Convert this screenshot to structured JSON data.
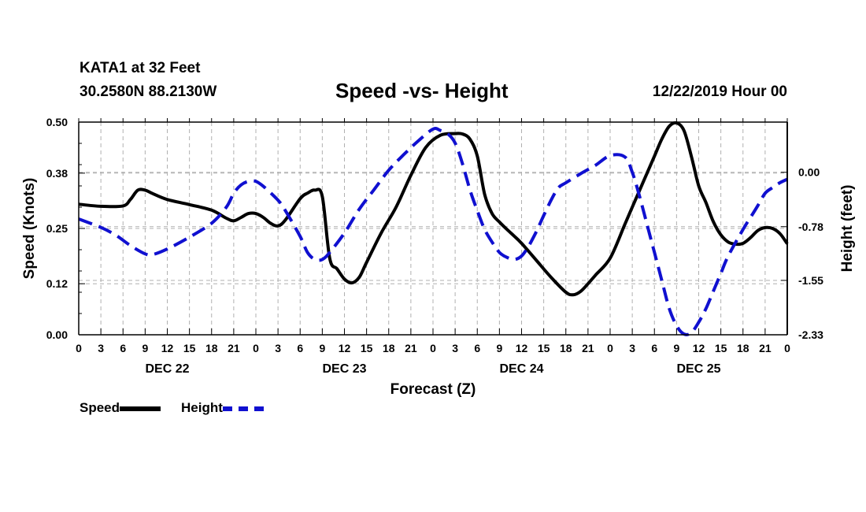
{
  "header": {
    "station": "KATA1 at 32 Feet",
    "coords": "30.2580N 88.2130W",
    "title": "Speed -vs- Height",
    "datetime": "12/22/2019 Hour 00"
  },
  "chart_data": {
    "type": "line",
    "title": "Speed -vs- Height",
    "xlabel": "Forecast (Z)",
    "ylabel_left": "Speed (Knots)",
    "ylabel_right": "Height (feet)",
    "x_unit": "forecast hour",
    "xlim": [
      0,
      96
    ],
    "x_tick_labels": [
      "0",
      "3",
      "6",
      "9",
      "12",
      "15",
      "18",
      "21",
      "0",
      "3",
      "6",
      "9",
      "12",
      "15",
      "18",
      "21",
      "0",
      "3",
      "6",
      "9",
      "12",
      "15",
      "18",
      "21",
      "0",
      "3",
      "6",
      "9",
      "12",
      "15",
      "18",
      "21",
      "0"
    ],
    "day_labels": [
      {
        "label": "DEC 22",
        "hour": 12
      },
      {
        "label": "DEC 23",
        "hour": 36
      },
      {
        "label": "DEC 24",
        "hour": 60
      },
      {
        "label": "DEC 25",
        "hour": 84
      }
    ],
    "ylim_left": [
      0.0,
      0.5
    ],
    "y_ticks_left": [
      "0.00",
      "0.12",
      "0.25",
      "0.38",
      "0.50"
    ],
    "ylim_right": [
      -2.33,
      0.72
    ],
    "y_ticks_right": [
      "-2.33",
      "-1.55",
      "-0.78",
      "0.00"
    ],
    "grid": true,
    "series": [
      {
        "name": "Speed",
        "axis": "left",
        "color": "#000000",
        "dash": "solid",
        "x": [
          0,
          3,
          6,
          7,
          8,
          9,
          10,
          12,
          15,
          18,
          20,
          21,
          22,
          23,
          24,
          25,
          26,
          27,
          28,
          30,
          31,
          32,
          33,
          34,
          35,
          36,
          37,
          38,
          39,
          41,
          43,
          45,
          47,
          49,
          51,
          52,
          53,
          54,
          55,
          56,
          57,
          58,
          59,
          60,
          62,
          64,
          66,
          67,
          68,
          69,
          70,
          72,
          74,
          75,
          76,
          77,
          78,
          79,
          80,
          81,
          82,
          83,
          84,
          85,
          86,
          87,
          88,
          89,
          90,
          91,
          92,
          93,
          94,
          95,
          96
        ],
        "values": [
          0.307,
          0.302,
          0.303,
          0.318,
          0.34,
          0.34,
          0.332,
          0.318,
          0.306,
          0.293,
          0.274,
          0.268,
          0.276,
          0.285,
          0.285,
          0.276,
          0.262,
          0.256,
          0.27,
          0.32,
          0.333,
          0.34,
          0.325,
          0.18,
          0.155,
          0.131,
          0.122,
          0.135,
          0.17,
          0.24,
          0.3,
          0.375,
          0.44,
          0.469,
          0.473,
          0.472,
          0.46,
          0.42,
          0.33,
          0.285,
          0.265,
          0.248,
          0.232,
          0.215,
          0.175,
          0.135,
          0.1,
          0.094,
          0.102,
          0.12,
          0.14,
          0.18,
          0.26,
          0.3,
          0.34,
          0.38,
          0.42,
          0.46,
          0.49,
          0.498,
          0.48,
          0.42,
          0.35,
          0.31,
          0.265,
          0.235,
          0.218,
          0.213,
          0.215,
          0.228,
          0.245,
          0.252,
          0.25,
          0.238,
          0.214
        ]
      },
      {
        "name": "Height",
        "axis": "right",
        "color": "#1010d0",
        "dash": "dashed",
        "x": [
          0,
          3,
          5,
          7,
          9,
          10,
          12,
          15,
          18,
          20,
          21,
          22,
          23,
          24,
          25,
          27,
          28,
          30,
          31,
          32,
          33,
          34,
          36,
          38,
          40,
          42,
          44,
          46,
          48,
          49,
          50,
          51,
          52,
          53,
          54,
          55,
          56,
          57,
          58,
          59,
          60,
          61,
          62,
          63,
          64,
          65,
          66,
          68,
          70,
          72,
          74,
          75,
          76,
          77,
          78,
          79,
          80,
          81,
          82,
          83,
          84,
          85,
          86,
          87,
          88,
          90,
          91,
          92,
          93,
          94,
          95,
          96
        ],
        "values": [
          -0.67,
          -0.79,
          -0.9,
          -1.05,
          -1.17,
          -1.18,
          -1.1,
          -0.93,
          -0.73,
          -0.5,
          -0.3,
          -0.18,
          -0.13,
          -0.13,
          -0.2,
          -0.4,
          -0.55,
          -0.92,
          -1.15,
          -1.25,
          -1.25,
          -1.15,
          -0.87,
          -0.53,
          -0.25,
          0.03,
          0.25,
          0.45,
          0.62,
          0.6,
          0.55,
          0.42,
          0.12,
          -0.25,
          -0.55,
          -0.82,
          -1.0,
          -1.15,
          -1.22,
          -1.25,
          -1.2,
          -1.05,
          -0.85,
          -0.62,
          -0.4,
          -0.22,
          -0.15,
          -0.02,
          0.1,
          0.24,
          0.22,
          0.0,
          -0.35,
          -0.75,
          -1.15,
          -1.55,
          -1.95,
          -2.2,
          -2.32,
          -2.3,
          -2.15,
          -1.95,
          -1.7,
          -1.45,
          -1.2,
          -0.82,
          -0.65,
          -0.48,
          -0.3,
          -0.22,
          -0.15,
          -0.1
        ]
      }
    ]
  },
  "legend": {
    "speed_label": "Speed",
    "height_label": "Height"
  },
  "colors": {
    "speed": "#000000",
    "height": "#1010d0",
    "grid": "#b0b0b0"
  }
}
